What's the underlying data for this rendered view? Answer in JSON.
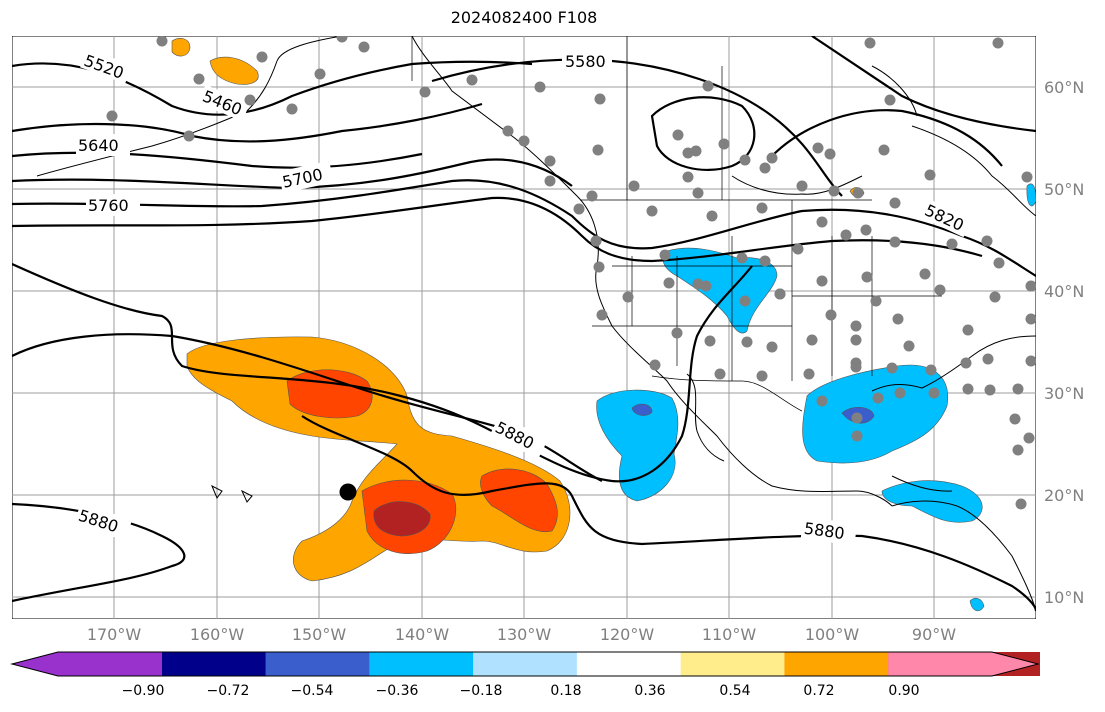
{
  "title": "2024082400 F108",
  "lat_labels": [
    "60°N",
    "50°N",
    "40°N",
    "30°N",
    "20°N",
    "10°N"
  ],
  "lon_labels": [
    "170°W",
    "160°W",
    "150°W",
    "140°W",
    "130°W",
    "120°W",
    "110°W",
    "100°W",
    "90°W"
  ],
  "contour_labels": [
    "5520",
    "5460",
    "5580",
    "5640",
    "5700",
    "5760",
    "5820",
    "5880",
    "5880",
    "5880"
  ],
  "colorbar": {
    "ticks": [
      "−0.90",
      "−0.72",
      "−0.54",
      "−0.36",
      "−0.18",
      "0.18",
      "0.36",
      "0.54",
      "0.72",
      "0.90"
    ],
    "colors": [
      "#9932cc",
      "#00008b",
      "#3a5fcd",
      "#00bfff",
      "#b0e2ff",
      "#ffffff",
      "#ffec8b",
      "#ffa500",
      "#ff4500",
      "#b22222",
      "#ff88aa"
    ]
  }
}
